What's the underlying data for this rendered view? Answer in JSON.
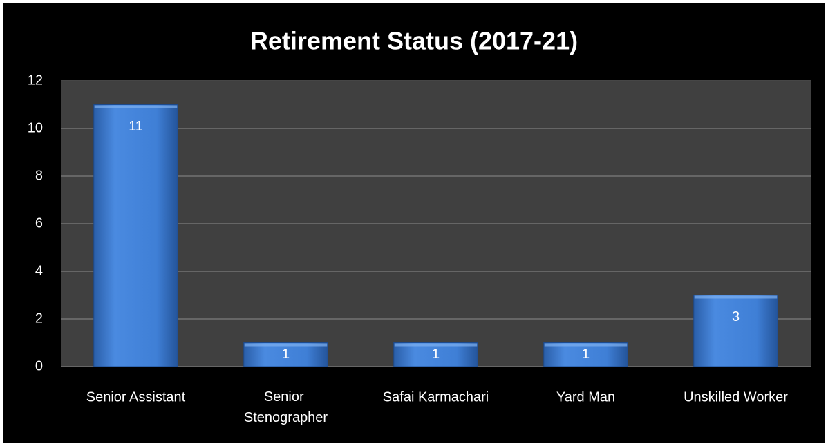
{
  "chart_data": {
    "type": "bar",
    "title": "Retirement Status (2017-21)",
    "categories": [
      "Senior Assistant",
      "Senior Stenographer",
      "Safai Karmachari",
      "Yard Man",
      "Unskilled Worker"
    ],
    "values": [
      11,
      1,
      1,
      1,
      3
    ],
    "color": "#3f7fd6",
    "ylim": [
      0,
      12
    ],
    "yticks": [
      0,
      2,
      4,
      6,
      8,
      10,
      12
    ],
    "grid": true,
    "data_labels": true
  }
}
